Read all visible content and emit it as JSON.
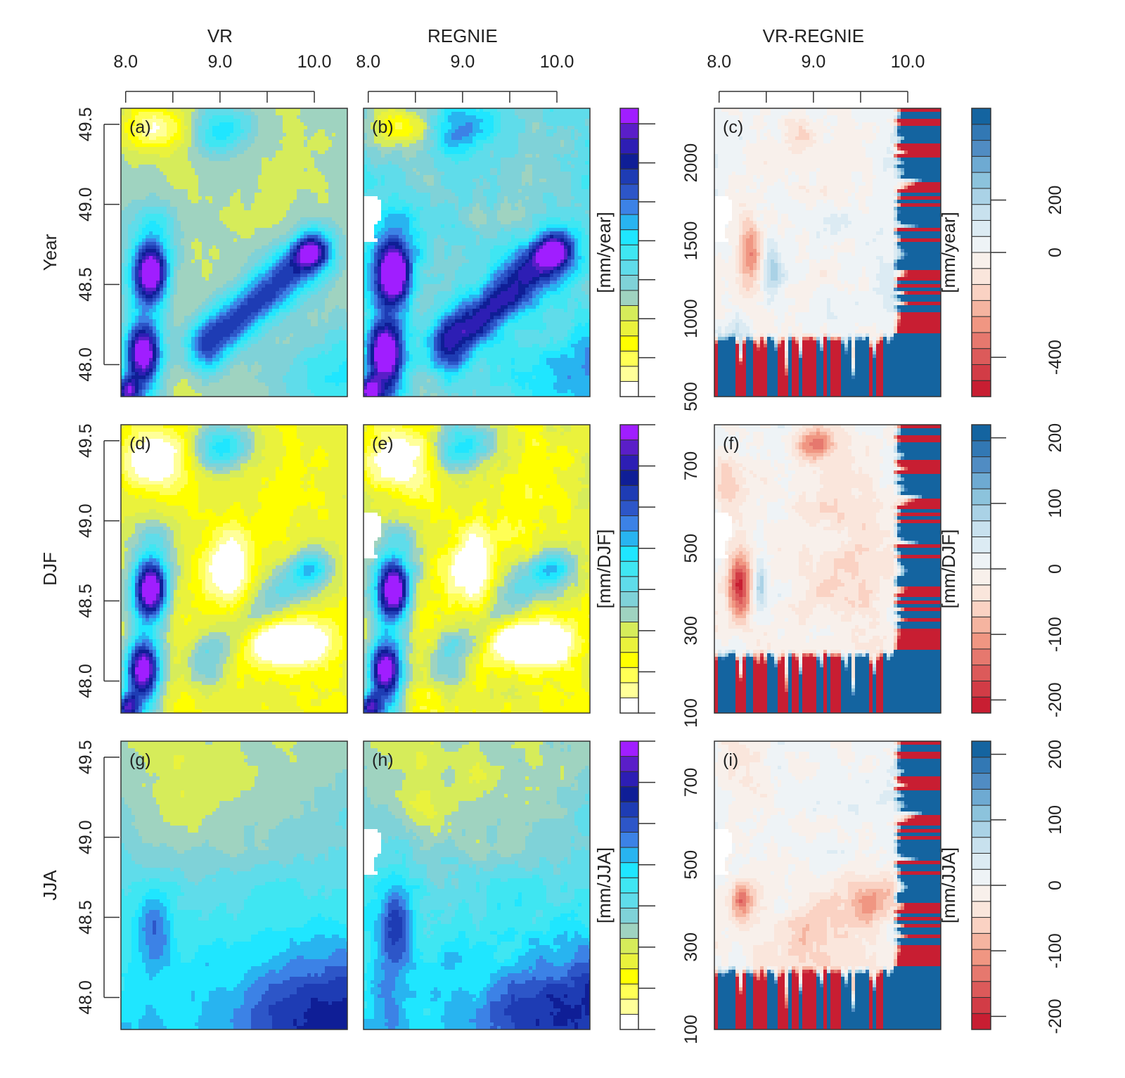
{
  "chart_data": {
    "type": "heatmap",
    "columns": [
      "VR",
      "REGNIE",
      "VR-REGNIE"
    ],
    "rows": [
      "Year",
      "DJF",
      "JJA"
    ],
    "x_ticks": [
      "8.0",
      "9.0",
      "10.0"
    ],
    "x_values": [
      8.0,
      9.0,
      10.0
    ],
    "x_range": [
      7.95,
      10.35
    ],
    "y_ticks": [
      "48.0",
      "48.5",
      "49.0",
      "49.5"
    ],
    "y_values": [
      48.0,
      48.5,
      49.0,
      49.5
    ],
    "y_range": [
      47.8,
      49.6
    ],
    "panel_labels": [
      "(a)",
      "(b)",
      "(c)",
      "(d)",
      "(e)",
      "(f)",
      "(g)",
      "(h)",
      "(i)"
    ],
    "abs_colorbars": [
      {
        "unit": "[mm/year]",
        "ticks": [
          "500",
          "1000",
          "1500",
          "2000"
        ],
        "tick_values": [
          500,
          1000,
          1500,
          2000
        ],
        "range": [
          500,
          2350
        ]
      },
      {
        "unit": "[mm/DJF]",
        "ticks": [
          "100",
          "300",
          "500",
          "700"
        ],
        "tick_values": [
          100,
          300,
          500,
          700
        ],
        "range": [
          100,
          800
        ]
      },
      {
        "unit": "[mm/JJA]",
        "ticks": [
          "100",
          "300",
          "500",
          "700"
        ],
        "tick_values": [
          100,
          300,
          500,
          700
        ],
        "range": [
          100,
          800
        ]
      }
    ],
    "diff_colorbars": [
      {
        "unit": "[mm/year]",
        "ticks": [
          "-400",
          "0",
          "200"
        ],
        "tick_values": [
          -400,
          0,
          200
        ],
        "range": [
          -550,
          550
        ]
      },
      {
        "unit": "[mm/DJF]",
        "ticks": [
          "-200",
          "-100",
          "0",
          "100",
          "200"
        ],
        "tick_values": [
          -200,
          -100,
          0,
          100,
          200
        ],
        "range": [
          -220,
          220
        ]
      },
      {
        "unit": "[mm/JJA]",
        "ticks": [
          "-200",
          "-100",
          "0",
          "100",
          "200"
        ],
        "tick_values": [
          -200,
          -100,
          0,
          100,
          200
        ],
        "range": [
          -220,
          220
        ]
      }
    ],
    "abs_palette": [
      "#ffffff",
      "#ffff99",
      "#ffff55",
      "#ffff00",
      "#eaf23c",
      "#d6ec5a",
      "#9fd3c0",
      "#7fd2d8",
      "#5fdcea",
      "#3fe6f2",
      "#1fe6ff",
      "#28b4f0",
      "#3c82e6",
      "#2d56c8",
      "#1e3cb4",
      "#0f1e96",
      "#2d1eb4",
      "#5a1ec8",
      "#a01eff"
    ],
    "diff_palette": [
      "#c81e32",
      "#d23c46",
      "#dc5a5a",
      "#e6786e",
      "#f09682",
      "#f5b4a0",
      "#fad2c3",
      "#fae6dc",
      "#f8f0eb",
      "#eef3f6",
      "#dcebf3",
      "#c8e1ee",
      "#aad2e6",
      "#8cc3dc",
      "#6eaad2",
      "#508cc3",
      "#3278b4",
      "#1464a0"
    ]
  }
}
